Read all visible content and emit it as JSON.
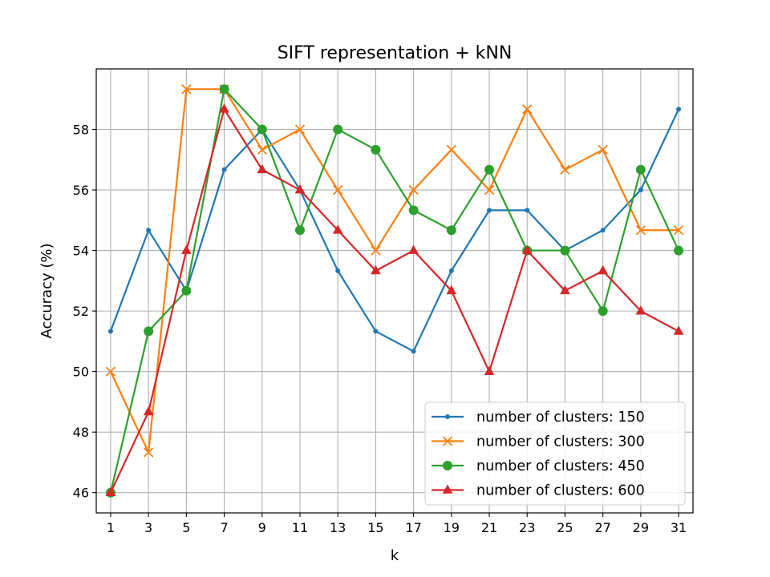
{
  "chart_data": {
    "type": "line",
    "title": "SIFT representation + kNN",
    "xlabel": "k",
    "ylabel": "Accuracy (%)",
    "x": [
      1,
      3,
      5,
      7,
      9,
      11,
      13,
      15,
      17,
      19,
      21,
      23,
      25,
      27,
      29,
      31
    ],
    "xlim": [
      0.24,
      31.76
    ],
    "ylim": [
      45.33,
      60.0
    ],
    "yticks": [
      46,
      48,
      50,
      52,
      54,
      56,
      58
    ],
    "grid": true,
    "legend_position": "lower-right",
    "series": [
      {
        "name": "number of clusters: 150",
        "color": "#1f77b4",
        "marker": "dot",
        "values": [
          51.33,
          54.67,
          52.67,
          56.67,
          58.0,
          56.0,
          53.33,
          51.33,
          50.67,
          53.33,
          55.33,
          55.33,
          54.0,
          54.67,
          56.0,
          58.67
        ]
      },
      {
        "name": "number of clusters: 300",
        "color": "#ff7f0e",
        "marker": "x",
        "values": [
          50.0,
          47.33,
          59.33,
          59.33,
          57.33,
          58.0,
          56.0,
          54.0,
          56.0,
          57.33,
          56.0,
          58.67,
          56.67,
          57.33,
          54.67,
          54.67
        ]
      },
      {
        "name": "number of clusters: 450",
        "color": "#2ca02c",
        "marker": "circle",
        "values": [
          46.0,
          51.33,
          52.67,
          59.33,
          58.0,
          54.67,
          58.0,
          57.33,
          55.33,
          54.67,
          56.67,
          54.0,
          54.0,
          52.0,
          56.67,
          54.0
        ]
      },
      {
        "name": "number of clusters: 600",
        "color": "#d62728",
        "marker": "triangle",
        "values": [
          46.0,
          48.67,
          54.0,
          58.67,
          56.67,
          56.0,
          54.67,
          53.33,
          54.0,
          52.67,
          50.0,
          54.0,
          52.67,
          53.33,
          52.0,
          51.33
        ]
      }
    ]
  }
}
